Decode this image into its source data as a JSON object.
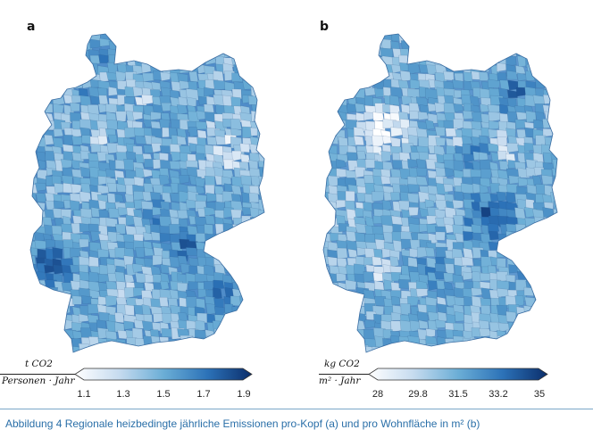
{
  "maps": [
    {
      "panel": "a",
      "unit_numerator": "t CO2",
      "unit_denominator": "Personen · Jahr",
      "ticks": [
        "1.1",
        "1.3",
        "1.5",
        "1.7",
        "1.9"
      ],
      "scale_min": 1.1,
      "scale_max": 1.9,
      "color_low": "#ffffff",
      "color_high": "#0b2e6b"
    },
    {
      "panel": "b",
      "unit_numerator": "kg CO2",
      "unit_denominator": "m² · Jahr",
      "ticks": [
        "28",
        "29.8",
        "31.5",
        "33.2",
        "35"
      ],
      "scale_min": 28,
      "scale_max": 35,
      "color_low": "#ffffff",
      "color_high": "#0b2e6b"
    }
  ],
  "caption": "Abbildung 4 Regionale heizbedingte jährliche Emissionen pro-Kopf (a) und pro Wohnfläche in m² (b)",
  "colors": {
    "caption": "#2a6fa8",
    "rule": "#7aa7c9"
  }
}
